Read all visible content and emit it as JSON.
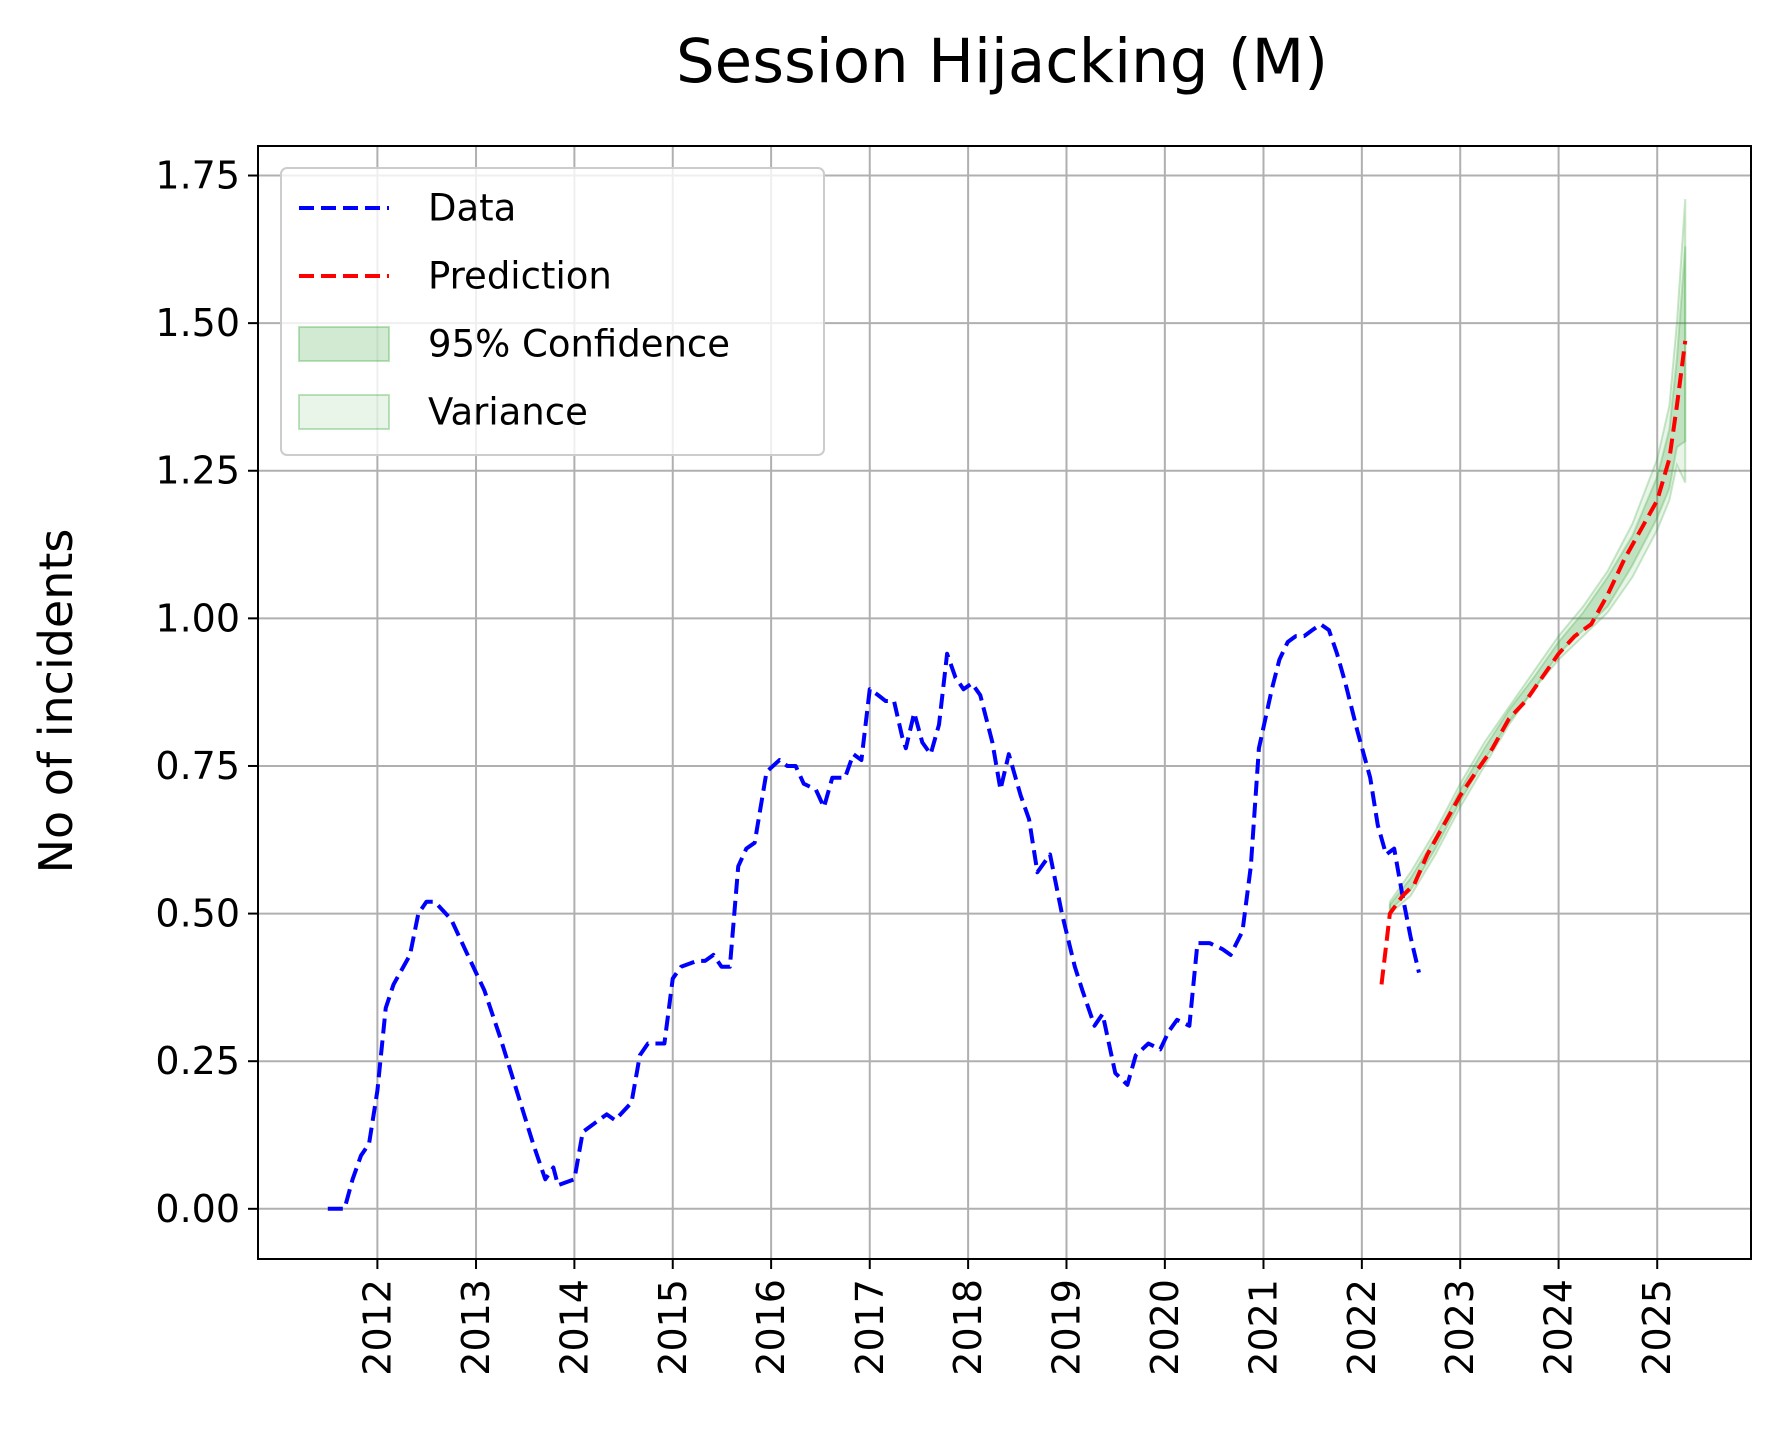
{
  "chart_data": {
    "type": "line",
    "title": "Session Hijacking (M)",
    "xlabel": "",
    "ylabel": "No of incidents",
    "x_type": "date",
    "xlim": [
      "2010-10-15",
      "2025-12-15"
    ],
    "ylim": [
      -0.085,
      1.8
    ],
    "x_ticks": [
      "2012",
      "2013",
      "2014",
      "2015",
      "2016",
      "2017",
      "2018",
      "2019",
      "2020",
      "2021",
      "2022",
      "2023",
      "2024",
      "2025"
    ],
    "y_ticks": [
      "0.00",
      "0.25",
      "0.50",
      "0.75",
      "1.00",
      "1.25",
      "1.50",
      "1.75"
    ],
    "y_tick_values": [
      0,
      0.25,
      0.5,
      0.75,
      1.0,
      1.25,
      1.5,
      1.75
    ],
    "grid": true,
    "legend": {
      "position": "upper-left",
      "entries": [
        {
          "label": "Data",
          "kind": "line",
          "color": "#0000ff",
          "dashed": true
        },
        {
          "label": "Prediction",
          "kind": "line",
          "color": "#ff0000",
          "dashed": true
        },
        {
          "label": "95% Confidence",
          "kind": "band",
          "color": "#2ca02c",
          "opacity": 0.22
        },
        {
          "label": "Variance",
          "kind": "band",
          "color": "#2ca02c",
          "opacity": 0.1
        }
      ]
    },
    "series": [
      {
        "name": "Data",
        "color": "#0000ff",
        "points": [
          [
            "2011-07-01",
            0.0
          ],
          [
            "2011-09-01",
            0.0
          ],
          [
            "2011-10-01",
            0.05
          ],
          [
            "2011-11-01",
            0.09
          ],
          [
            "2011-12-01",
            0.11
          ],
          [
            "2012-01-01",
            0.2
          ],
          [
            "2012-02-01",
            0.34
          ],
          [
            "2012-03-01",
            0.38
          ],
          [
            "2012-05-01",
            0.43
          ],
          [
            "2012-06-01",
            0.5
          ],
          [
            "2012-07-01",
            0.52
          ],
          [
            "2012-08-01",
            0.52
          ],
          [
            "2012-10-01",
            0.49
          ],
          [
            "2012-12-01",
            0.43
          ],
          [
            "2013-02-01",
            0.37
          ],
          [
            "2013-04-01",
            0.29
          ],
          [
            "2013-06-01",
            0.2
          ],
          [
            "2013-08-01",
            0.11
          ],
          [
            "2013-09-15",
            0.05
          ],
          [
            "2013-10-15",
            0.07
          ],
          [
            "2013-11-01",
            0.04
          ],
          [
            "2014-01-01",
            0.05
          ],
          [
            "2014-02-01",
            0.13
          ],
          [
            "2014-04-01",
            0.15
          ],
          [
            "2014-05-01",
            0.16
          ],
          [
            "2014-06-01",
            0.15
          ],
          [
            "2014-08-01",
            0.18
          ],
          [
            "2014-09-01",
            0.26
          ],
          [
            "2014-10-01",
            0.28
          ],
          [
            "2014-12-01",
            0.28
          ],
          [
            "2015-01-01",
            0.39
          ],
          [
            "2015-02-01",
            0.41
          ],
          [
            "2015-04-01",
            0.42
          ],
          [
            "2015-05-01",
            0.42
          ],
          [
            "2015-06-01",
            0.43
          ],
          [
            "2015-07-01",
            0.41
          ],
          [
            "2015-08-01",
            0.41
          ],
          [
            "2015-09-01",
            0.58
          ],
          [
            "2015-10-01",
            0.61
          ],
          [
            "2015-11-01",
            0.62
          ],
          [
            "2015-12-15",
            0.74
          ],
          [
            "2016-02-01",
            0.76
          ],
          [
            "2016-03-01",
            0.75
          ],
          [
            "2016-04-01",
            0.75
          ],
          [
            "2016-05-01",
            0.72
          ],
          [
            "2016-06-15",
            0.71
          ],
          [
            "2016-07-15",
            0.68
          ],
          [
            "2016-08-15",
            0.73
          ],
          [
            "2016-10-01",
            0.73
          ],
          [
            "2016-11-01",
            0.77
          ],
          [
            "2016-12-01",
            0.76
          ],
          [
            "2017-01-01",
            0.88
          ],
          [
            "2017-02-01",
            0.87
          ],
          [
            "2017-03-01",
            0.86
          ],
          [
            "2017-04-01",
            0.86
          ],
          [
            "2017-05-01",
            0.8
          ],
          [
            "2017-05-15",
            0.78
          ],
          [
            "2017-06-15",
            0.84
          ],
          [
            "2017-07-15",
            0.79
          ],
          [
            "2017-08-15",
            0.77
          ],
          [
            "2017-09-15",
            0.82
          ],
          [
            "2017-10-15",
            0.94
          ],
          [
            "2017-11-15",
            0.9
          ],
          [
            "2017-12-15",
            0.88
          ],
          [
            "2018-01-15",
            0.89
          ],
          [
            "2018-02-15",
            0.87
          ],
          [
            "2018-04-01",
            0.79
          ],
          [
            "2018-05-01",
            0.71
          ],
          [
            "2018-06-01",
            0.77
          ],
          [
            "2018-07-15",
            0.7
          ],
          [
            "2018-08-15",
            0.66
          ],
          [
            "2018-09-15",
            0.57
          ],
          [
            "2018-11-01",
            0.6
          ],
          [
            "2018-12-15",
            0.5
          ],
          [
            "2019-02-01",
            0.41
          ],
          [
            "2019-03-01",
            0.37
          ],
          [
            "2019-04-15",
            0.31
          ],
          [
            "2019-05-15",
            0.33
          ],
          [
            "2019-07-01",
            0.23
          ],
          [
            "2019-08-15",
            0.21
          ],
          [
            "2019-09-15",
            0.26
          ],
          [
            "2019-11-01",
            0.28
          ],
          [
            "2019-12-15",
            0.27
          ],
          [
            "2020-01-15",
            0.3
          ],
          [
            "2020-02-15",
            0.32
          ],
          [
            "2020-04-01",
            0.31
          ],
          [
            "2020-05-01",
            0.45
          ],
          [
            "2020-06-15",
            0.45
          ],
          [
            "2020-08-01",
            0.44
          ],
          [
            "2020-09-01",
            0.43
          ],
          [
            "2020-10-15",
            0.47
          ],
          [
            "2020-11-15",
            0.58
          ],
          [
            "2020-12-15",
            0.78
          ],
          [
            "2021-02-01",
            0.88
          ],
          [
            "2021-03-01",
            0.93
          ],
          [
            "2021-04-01",
            0.96
          ],
          [
            "2021-05-01",
            0.97
          ],
          [
            "2021-06-01",
            0.97
          ],
          [
            "2021-07-01",
            0.98
          ],
          [
            "2021-08-01",
            0.99
          ],
          [
            "2021-09-01",
            0.98
          ],
          [
            "2021-10-01",
            0.94
          ],
          [
            "2021-11-01",
            0.89
          ],
          [
            "2021-12-15",
            0.81
          ],
          [
            "2022-02-01",
            0.73
          ],
          [
            "2022-03-01",
            0.65
          ],
          [
            "2022-04-01",
            0.6
          ],
          [
            "2022-05-01",
            0.61
          ],
          [
            "2022-06-01",
            0.53
          ],
          [
            "2022-07-01",
            0.46
          ],
          [
            "2022-08-01",
            0.4
          ]
        ]
      },
      {
        "name": "Prediction",
        "color": "#ff0000",
        "points": [
          [
            "2022-03-15",
            0.38
          ],
          [
            "2022-04-15",
            0.5
          ],
          [
            "2022-06-01",
            0.53
          ],
          [
            "2022-07-15",
            0.55
          ],
          [
            "2022-09-01",
            0.6
          ],
          [
            "2022-11-01",
            0.65
          ],
          [
            "2023-01-01",
            0.7
          ],
          [
            "2023-03-01",
            0.74
          ],
          [
            "2023-05-01",
            0.78
          ],
          [
            "2023-07-01",
            0.83
          ],
          [
            "2023-09-01",
            0.86
          ],
          [
            "2023-11-01",
            0.9
          ],
          [
            "2024-01-01",
            0.94
          ],
          [
            "2024-03-01",
            0.97
          ],
          [
            "2024-05-01",
            0.99
          ],
          [
            "2024-07-01",
            1.04
          ],
          [
            "2024-09-01",
            1.1
          ],
          [
            "2024-11-01",
            1.15
          ],
          [
            "2025-01-01",
            1.2
          ],
          [
            "2025-02-15",
            1.27
          ],
          [
            "2025-03-15",
            1.36
          ],
          [
            "2025-04-15",
            1.47
          ]
        ]
      }
    ],
    "bands": [
      {
        "name": "Variance",
        "x": [
          "2022-04-15",
          "2022-07-01",
          "2022-10-01",
          "2023-01-01",
          "2023-04-01",
          "2023-07-01",
          "2023-10-01",
          "2024-01-01",
          "2024-04-01",
          "2024-07-01",
          "2024-10-01",
          "2025-01-01",
          "2025-02-15",
          "2025-03-15",
          "2025-04-15"
        ],
        "upper": [
          0.52,
          0.57,
          0.64,
          0.72,
          0.79,
          0.85,
          0.91,
          0.97,
          1.02,
          1.08,
          1.16,
          1.27,
          1.36,
          1.5,
          1.71
        ],
        "lower": [
          0.5,
          0.53,
          0.6,
          0.68,
          0.75,
          0.82,
          0.88,
          0.93,
          0.97,
          1.01,
          1.07,
          1.15,
          1.2,
          1.26,
          1.23
        ]
      },
      {
        "name": "95% Confidence",
        "x": [
          "2022-04-15",
          "2022-07-01",
          "2022-10-01",
          "2023-01-01",
          "2023-04-01",
          "2023-07-01",
          "2023-10-01",
          "2024-01-01",
          "2024-04-01",
          "2024-07-01",
          "2024-10-01",
          "2025-01-01",
          "2025-02-15",
          "2025-03-15",
          "2025-04-15"
        ],
        "upper": [
          0.515,
          0.56,
          0.63,
          0.71,
          0.78,
          0.845,
          0.9,
          0.96,
          1.01,
          1.07,
          1.14,
          1.24,
          1.32,
          1.44,
          1.63
        ],
        "lower": [
          0.505,
          0.54,
          0.61,
          0.69,
          0.76,
          0.825,
          0.88,
          0.94,
          0.98,
          1.02,
          1.09,
          1.17,
          1.22,
          1.29,
          1.3
        ]
      }
    ]
  }
}
